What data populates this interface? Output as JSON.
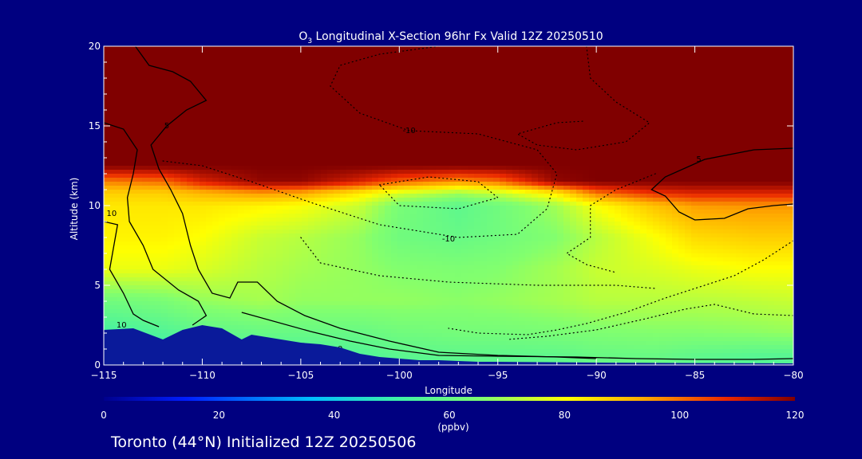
{
  "title_main": "O",
  "title_sub": "3",
  "title_rest": " Longitudinal X-Section 96hr  Fx Valid 12Z 20250510",
  "footer": "Toronto (44°N) Initialized 12Z 20250506",
  "colors": {
    "background": "#000080",
    "terrain": "#0a1a9a",
    "contour": "#000000",
    "text": "#ffffff"
  },
  "chart_data": {
    "type": "heatmap",
    "xlabel": "Longitude",
    "ylabel": "Altitude (km)",
    "xlim": [
      -115,
      -80
    ],
    "ylim": [
      0,
      20
    ],
    "xticks": [
      -115,
      -110,
      -105,
      -100,
      -95,
      -90,
      -85,
      -80
    ],
    "xtick_labels": [
      "−115",
      "−110",
      "−105",
      "−100",
      "−95",
      "−90",
      "−85",
      "−80"
    ],
    "yticks": [
      0,
      5,
      10,
      15,
      20
    ],
    "ytick_labels": [
      "0",
      "5",
      "10",
      "15",
      "20"
    ],
    "colorbar": {
      "min": 0,
      "max": 120,
      "ticks": [
        0,
        20,
        40,
        60,
        80,
        100,
        120
      ],
      "tick_labels": [
        "0",
        "20",
        "40",
        "60",
        "80",
        "100",
        "120"
      ],
      "units": "(ppbv)"
    },
    "field": {
      "description": "ozone mixing ratio (ppbv), longitude vs altitude",
      "x": [
        -115,
        -112,
        -110,
        -107,
        -105,
        -102,
        -100,
        -97,
        -95,
        -92,
        -90,
        -87,
        -85,
        -82,
        -80
      ],
      "y": [
        0.5,
        2,
        4,
        6,
        8,
        10,
        10.8,
        11.5,
        12.5,
        14,
        17,
        20
      ],
      "values": [
        [
          45,
          48,
          50,
          52,
          54,
          55,
          57,
          58,
          58,
          58,
          60,
          60,
          58,
          56,
          56
        ],
        [
          52,
          55,
          58,
          60,
          60,
          60,
          62,
          63,
          63,
          64,
          65,
          66,
          66,
          67,
          68
        ],
        [
          62,
          64,
          68,
          70,
          68,
          68,
          68,
          67,
          68,
          70,
          72,
          72,
          72,
          73,
          74
        ],
        [
          78,
          78,
          76,
          72,
          70,
          68,
          66,
          65,
          66,
          70,
          74,
          76,
          78,
          80,
          80
        ],
        [
          82,
          82,
          80,
          74,
          72,
          68,
          62,
          60,
          62,
          66,
          72,
          80,
          86,
          88,
          88
        ],
        [
          84,
          84,
          84,
          82,
          80,
          74,
          64,
          58,
          62,
          70,
          80,
          90,
          95,
          96,
          96
        ],
        [
          88,
          88,
          92,
          96,
          94,
          84,
          76,
          70,
          74,
          84,
          100,
          108,
          110,
          110,
          110
        ],
        [
          98,
          100,
          110,
          118,
          118,
          110,
          102,
          96,
          100,
          118,
          120,
          120,
          120,
          120,
          120
        ],
        [
          120,
          120,
          120,
          120,
          120,
          120,
          120,
          120,
          120,
          120,
          120,
          120,
          120,
          120,
          120
        ],
        [
          120,
          120,
          120,
          120,
          120,
          120,
          120,
          120,
          120,
          120,
          120,
          120,
          120,
          120,
          120
        ],
        [
          120,
          120,
          120,
          120,
          120,
          120,
          120,
          120,
          120,
          120,
          120,
          120,
          120,
          120,
          120
        ],
        [
          120,
          120,
          120,
          120,
          120,
          120,
          120,
          120,
          120,
          120,
          120,
          120,
          120,
          120,
          120
        ]
      ]
    },
    "terrain": {
      "x": [
        -115,
        -113.5,
        -112,
        -111,
        -110,
        -109,
        -108,
        -107.5,
        -107,
        -106,
        -105,
        -104,
        -103,
        -102,
        -101,
        -100,
        -99,
        -98,
        -97,
        -96,
        -95,
        -90,
        -85,
        -80
      ],
      "y": [
        2.2,
        2.3,
        1.6,
        2.2,
        2.5,
        2.3,
        1.6,
        1.9,
        1.8,
        1.6,
        1.4,
        1.3,
        1.1,
        0.7,
        0.5,
        0.4,
        0.3,
        0.3,
        0.25,
        0.2,
        0.2,
        0.15,
        0.12,
        0.1
      ]
    },
    "contours": [
      {
        "style": "solid",
        "label": "10",
        "label_at": [
          -114.6,
          9.5
        ],
        "points": [
          [
            -115,
            15.2
          ],
          [
            -114,
            14.8
          ],
          [
            -113.3,
            13.5
          ],
          [
            -113.5,
            12.0
          ],
          [
            -113.8,
            10.5
          ],
          [
            -113.7,
            9.0
          ],
          [
            -113.0,
            7.5
          ],
          [
            -112.5,
            6.0
          ],
          [
            -111.2,
            4.7
          ],
          [
            -110.2,
            4.0
          ],
          [
            -109.8,
            3.1
          ],
          [
            -110.5,
            2.5
          ]
        ]
      },
      {
        "style": "solid",
        "label": "10",
        "label_at": [
          -114.1,
          2.5
        ],
        "points": [
          [
            -115,
            9.0
          ],
          [
            -114.3,
            8.8
          ],
          [
            -114.7,
            6.0
          ],
          [
            -114.0,
            4.5
          ],
          [
            -113.5,
            3.2
          ],
          [
            -113.0,
            2.8
          ],
          [
            -112.2,
            2.4
          ]
        ]
      },
      {
        "style": "solid",
        "label": "5",
        "label_at": [
          -111.8,
          15
        ],
        "points": [
          [
            -113.4,
            20
          ],
          [
            -112.7,
            18.8
          ],
          [
            -111.5,
            18.4
          ],
          [
            -110.6,
            17.8
          ],
          [
            -109.8,
            16.6
          ],
          [
            -110.8,
            16.0
          ],
          [
            -111.8,
            15.0
          ],
          [
            -112.6,
            13.8
          ],
          [
            -112.2,
            12.3
          ],
          [
            -111.6,
            11.0
          ],
          [
            -111.0,
            9.5
          ],
          [
            -110.6,
            7.5
          ],
          [
            -110.2,
            6.0
          ],
          [
            -109.5,
            4.5
          ],
          [
            -108.6,
            4.2
          ],
          [
            -108.2,
            5.2
          ],
          [
            -107.2,
            5.2
          ],
          [
            -106.2,
            4.0
          ],
          [
            -104.8,
            3.1
          ],
          [
            -103.0,
            2.3
          ],
          [
            -100.5,
            1.5
          ],
          [
            -98.0,
            0.8
          ],
          [
            -95.0,
            0.6
          ],
          [
            -92.0,
            0.5
          ],
          [
            -90.0,
            0.4
          ]
        ]
      },
      {
        "style": "solid",
        "label": "0",
        "label_at": [
          -103,
          1.0
        ],
        "points": [
          [
            -108.0,
            3.3
          ],
          [
            -104.5,
            2.1
          ],
          [
            -102.5,
            1.5
          ],
          [
            -100.5,
            1.0
          ],
          [
            -98.0,
            0.6
          ],
          [
            -95.0,
            0.55
          ],
          [
            -91.0,
            0.5
          ],
          [
            -88.0,
            0.4
          ],
          [
            -85.0,
            0.35
          ],
          [
            -82.0,
            0.35
          ],
          [
            -80.0,
            0.4
          ]
        ]
      },
      {
        "style": "solid",
        "label": "5",
        "label_at": [
          -84.8,
          12.9
        ],
        "points": [
          [
            -80,
            13.6
          ],
          [
            -82.0,
            13.5
          ],
          [
            -84.5,
            12.9
          ],
          [
            -86.5,
            11.8
          ],
          [
            -87.2,
            11.0
          ],
          [
            -86.5,
            10.6
          ],
          [
            -85.8,
            9.6
          ],
          [
            -85.0,
            9.1
          ],
          [
            -83.5,
            9.2
          ],
          [
            -82.3,
            9.8
          ],
          [
            -81.0,
            10.0
          ],
          [
            -80.0,
            10.1
          ]
        ]
      },
      {
        "style": "dotted",
        "label": "-10",
        "label_at": [
          -99.5,
          14.7
        ],
        "points": [
          [
            -112.0,
            12.8
          ],
          [
            -110.0,
            12.5
          ],
          [
            -107.5,
            11.5
          ],
          [
            -104.5,
            10.2
          ],
          [
            -101.0,
            8.8
          ],
          [
            -97.0,
            8.0
          ],
          [
            -94.0,
            8.2
          ],
          [
            -92.5,
            9.8
          ],
          [
            -92.0,
            12.0
          ],
          [
            -93.0,
            13.5
          ],
          [
            -96.0,
            14.5
          ],
          [
            -99.5,
            14.7
          ],
          [
            -102.0,
            15.8
          ],
          [
            -103.5,
            17.5
          ],
          [
            -103.0,
            18.8
          ],
          [
            -101.0,
            19.5
          ],
          [
            -98.0,
            20.0
          ]
        ]
      },
      {
        "style": "dotted",
        "label": "-10",
        "label_at": [
          -97.5,
          7.9
        ],
        "points": [
          [
            -105.0,
            8.0
          ],
          [
            -104.0,
            6.4
          ],
          [
            -101.0,
            5.6
          ],
          [
            -97.5,
            5.2
          ],
          [
            -93.0,
            5.0
          ],
          [
            -89.0,
            5.0
          ],
          [
            -87.0,
            4.8
          ]
        ]
      },
      {
        "style": "dotted",
        "label": "",
        "label_at": null,
        "points": [
          [
            -101.0,
            11.3
          ],
          [
            -98.5,
            11.8
          ],
          [
            -96.0,
            11.5
          ],
          [
            -95.0,
            10.5
          ],
          [
            -97.0,
            9.8
          ],
          [
            -100.0,
            10.0
          ],
          [
            -101.0,
            11.3
          ]
        ]
      },
      {
        "style": "dotted",
        "label": "",
        "label_at": null,
        "points": [
          [
            -90.5,
            20.0
          ],
          [
            -90.3,
            18.0
          ],
          [
            -89.0,
            16.5
          ],
          [
            -87.3,
            15.2
          ],
          [
            -88.5,
            14.0
          ],
          [
            -91.0,
            13.5
          ],
          [
            -93.0,
            13.8
          ],
          [
            -94.0,
            14.5
          ],
          [
            -92.0,
            15.2
          ],
          [
            -90.6,
            15.3
          ]
        ]
      },
      {
        "style": "dotted",
        "label": "",
        "label_at": null,
        "points": [
          [
            -87.0,
            12.0
          ],
          [
            -89.0,
            11.0
          ],
          [
            -90.3,
            10.0
          ],
          [
            -90.3,
            8.0
          ],
          [
            -91.5,
            7.0
          ],
          [
            -90.5,
            6.3
          ],
          [
            -89.0,
            5.8
          ]
        ]
      },
      {
        "style": "dotted",
        "label": "",
        "label_at": null,
        "points": [
          [
            -80.0,
            7.8
          ],
          [
            -81.5,
            6.6
          ],
          [
            -83.0,
            5.6
          ],
          [
            -85.0,
            4.8
          ],
          [
            -86.5,
            4.2
          ],
          [
            -88.5,
            3.3
          ],
          [
            -90.5,
            2.6
          ],
          [
            -92.0,
            2.2
          ],
          [
            -93.5,
            1.9
          ],
          [
            -96.0,
            2.0
          ],
          [
            -97.5,
            2.3
          ]
        ]
      },
      {
        "style": "dotted",
        "label": "",
        "label_at": null,
        "points": [
          [
            -80.0,
            3.1
          ],
          [
            -82.0,
            3.2
          ],
          [
            -84.0,
            3.8
          ],
          [
            -85.5,
            3.5
          ],
          [
            -87.5,
            2.9
          ],
          [
            -90.0,
            2.2
          ],
          [
            -92.5,
            1.8
          ],
          [
            -94.5,
            1.6
          ]
        ]
      }
    ]
  }
}
